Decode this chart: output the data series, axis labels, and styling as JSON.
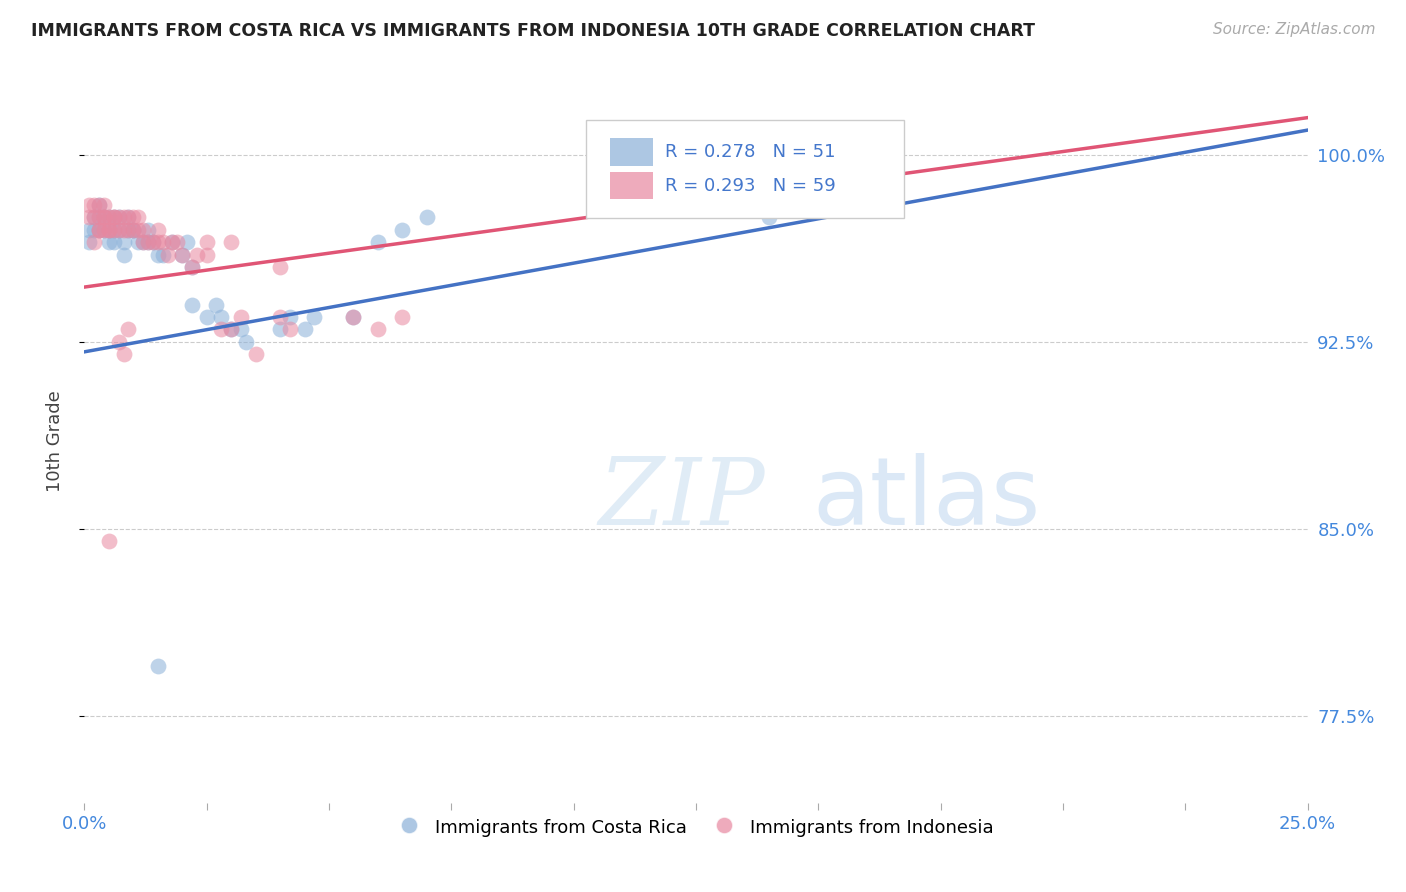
{
  "title": "IMMIGRANTS FROM COSTA RICA VS IMMIGRANTS FROM INDONESIA 10TH GRADE CORRELATION CHART",
  "source": "Source: ZipAtlas.com",
  "ylabel": "10th Grade",
  "yaxis_labels": [
    "100.0%",
    "92.5%",
    "85.0%",
    "77.5%"
  ],
  "yaxis_values": [
    1.0,
    0.925,
    0.85,
    0.775
  ],
  "xmin": 0.0,
  "xmax": 0.25,
  "ymin": 0.74,
  "ymax": 1.03,
  "legend_blue_label": "Immigrants from Costa Rica",
  "legend_pink_label": "Immigrants from Indonesia",
  "legend_R_blue": "R = 0.278",
  "legend_N_blue": "N = 51",
  "legend_R_pink": "R = 0.293",
  "legend_N_pink": "N = 59",
  "blue_color": "#8ab0d8",
  "pink_color": "#e888a0",
  "blue_line_color": "#4472c4",
  "pink_line_color": "#e05575",
  "blue_scatter_alpha": 0.55,
  "pink_scatter_alpha": 0.55,
  "scatter_size": 130,
  "scatter_blue_x": [
    0.001,
    0.001,
    0.002,
    0.002,
    0.003,
    0.003,
    0.003,
    0.004,
    0.004,
    0.005,
    0.005,
    0.005,
    0.006,
    0.006,
    0.006,
    0.007,
    0.007,
    0.008,
    0.008,
    0.009,
    0.009,
    0.01,
    0.01,
    0.011,
    0.012,
    0.013,
    0.013,
    0.014,
    0.015,
    0.016,
    0.018,
    0.02,
    0.021,
    0.022,
    0.022,
    0.025,
    0.027,
    0.028,
    0.03,
    0.032,
    0.033,
    0.04,
    0.042,
    0.045,
    0.047,
    0.055,
    0.06,
    0.065,
    0.07,
    0.14,
    0.015
  ],
  "scatter_blue_y": [
    0.965,
    0.97,
    0.975,
    0.97,
    0.98,
    0.975,
    0.97,
    0.975,
    0.97,
    0.975,
    0.965,
    0.97,
    0.975,
    0.97,
    0.965,
    0.97,
    0.975,
    0.96,
    0.965,
    0.97,
    0.975,
    0.97,
    0.97,
    0.965,
    0.965,
    0.97,
    0.965,
    0.965,
    0.96,
    0.96,
    0.965,
    0.96,
    0.965,
    0.955,
    0.94,
    0.935,
    0.94,
    0.935,
    0.93,
    0.93,
    0.925,
    0.93,
    0.935,
    0.93,
    0.935,
    0.935,
    0.965,
    0.97,
    0.975,
    0.975,
    0.795
  ],
  "scatter_pink_x": [
    0.001,
    0.001,
    0.002,
    0.002,
    0.003,
    0.003,
    0.003,
    0.004,
    0.004,
    0.004,
    0.005,
    0.005,
    0.006,
    0.006,
    0.007,
    0.007,
    0.008,
    0.008,
    0.009,
    0.009,
    0.01,
    0.01,
    0.011,
    0.011,
    0.012,
    0.012,
    0.013,
    0.014,
    0.015,
    0.016,
    0.017,
    0.018,
    0.019,
    0.02,
    0.022,
    0.023,
    0.025,
    0.028,
    0.03,
    0.032,
    0.035,
    0.04,
    0.042,
    0.055,
    0.06,
    0.065,
    0.015,
    0.025,
    0.03,
    0.04,
    0.005,
    0.007,
    0.008,
    0.009,
    0.002,
    0.003,
    0.004,
    0.005,
    0.006
  ],
  "scatter_pink_y": [
    0.975,
    0.98,
    0.975,
    0.98,
    0.975,
    0.98,
    0.97,
    0.975,
    0.98,
    0.97,
    0.975,
    0.97,
    0.975,
    0.97,
    0.975,
    0.97,
    0.975,
    0.97,
    0.975,
    0.97,
    0.97,
    0.975,
    0.97,
    0.975,
    0.965,
    0.97,
    0.965,
    0.965,
    0.965,
    0.965,
    0.96,
    0.965,
    0.965,
    0.96,
    0.955,
    0.96,
    0.96,
    0.93,
    0.93,
    0.935,
    0.92,
    0.935,
    0.93,
    0.935,
    0.93,
    0.935,
    0.97,
    0.965,
    0.965,
    0.955,
    0.845,
    0.925,
    0.92,
    0.93,
    0.965,
    0.97,
    0.975,
    0.97,
    0.975
  ],
  "trendline_blue_x0": 0.0,
  "trendline_blue_y0": 0.921,
  "trendline_blue_x1": 0.25,
  "trendline_blue_y1": 1.01,
  "trendline_pink_x0": 0.0,
  "trendline_pink_y0": 0.947,
  "trendline_pink_x1": 0.25,
  "trendline_pink_y1": 1.015
}
